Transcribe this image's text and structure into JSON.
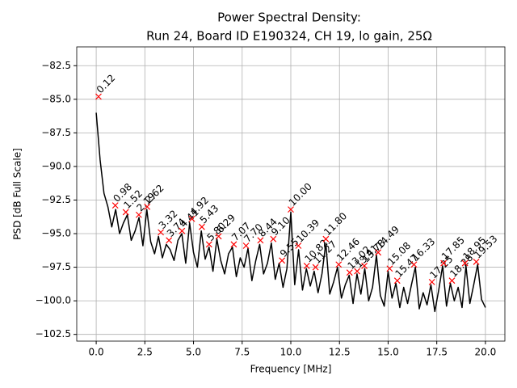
{
  "chart_data": {
    "type": "line",
    "title": "Power Spectral Density:",
    "subtitle": "Run 24, Board ID E190324, CH 19, lo gain, 25Ω",
    "x_label": "Frequency [MHz]",
    "y_label": "PSD [dB Full Scale]",
    "xlim": [
      -1.0,
      21.0
    ],
    "ylim": [
      -103.0,
      -81.1
    ],
    "xticks": [
      {
        "value": 0,
        "label": "0.0"
      },
      2.5,
      {
        "value": 5,
        "label": "5.0"
      },
      7.5,
      {
        "value": 10,
        "label": "10.0"
      },
      12.5,
      {
        "value": 15,
        "label": "15.0"
      },
      17.5,
      {
        "value": 20,
        "label": "20.0"
      }
    ],
    "yticks": [
      {
        "value": -82.5,
        "label": "−82.5"
      },
      {
        "value": -85,
        "label": "−85.0"
      },
      {
        "value": -87.5,
        "label": "−87.5"
      },
      {
        "value": -90,
        "label": "−90.0"
      },
      {
        "value": -92.5,
        "label": "−92.5"
      },
      {
        "value": -95,
        "label": "−95.0"
      },
      {
        "value": -97.5,
        "label": "−97.5"
      },
      {
        "value": -100,
        "label": "−100.0"
      },
      {
        "value": -102.5,
        "label": "−102.5"
      }
    ],
    "grid": true,
    "series": [
      {
        "color": "#000000",
        "marker": "none",
        "x": [
          0.0,
          0.2,
          0.4,
          0.6,
          0.8,
          1.0,
          1.2,
          1.4,
          1.6,
          1.8,
          2.0,
          2.2,
          2.4,
          2.6,
          2.8,
          3.0,
          3.2,
          3.4,
          3.6,
          3.8,
          4.0,
          4.2,
          4.4,
          4.6,
          4.8,
          5.0,
          5.2,
          5.4,
          5.6,
          5.8,
          6.0,
          6.2,
          6.4,
          6.6,
          6.8,
          7.0,
          7.2,
          7.4,
          7.6,
          7.8,
          8.0,
          8.2,
          8.4,
          8.6,
          8.8,
          9.0,
          9.2,
          9.4,
          9.6,
          9.8,
          10.0,
          10.2,
          10.4,
          10.6,
          10.8,
          11.0,
          11.2,
          11.4,
          11.6,
          11.8,
          12.0,
          12.2,
          12.4,
          12.6,
          12.8,
          13.0,
          13.2,
          13.4,
          13.6,
          13.8,
          14.0,
          14.2,
          14.4,
          14.6,
          14.8,
          15.0,
          15.2,
          15.4,
          15.6,
          15.8,
          16.0,
          16.2,
          16.4,
          16.6,
          16.8,
          17.0,
          17.2,
          17.4,
          17.6,
          17.8,
          18.0,
          18.2,
          18.4,
          18.6,
          18.8,
          19.0,
          19.2,
          19.4,
          19.6,
          19.8,
          20.0
        ],
        "values": [
          -86.0,
          -89.5,
          -92.0,
          -93.0,
          -94.5,
          -93.2,
          -95.0,
          -94.2,
          -93.6,
          -95.5,
          -94.8,
          -93.8,
          -95.9,
          -93.2,
          -95.6,
          -96.5,
          -95.2,
          -96.8,
          -95.8,
          -96.2,
          -97.0,
          -95.5,
          -95.0,
          -97.2,
          -94.2,
          -96.4,
          -97.5,
          -94.8,
          -96.9,
          -96.0,
          -97.8,
          -95.4,
          -97.0,
          -98.0,
          -96.5,
          -96.0,
          -98.2,
          -96.8,
          -97.5,
          -96.1,
          -98.5,
          -97.0,
          -95.8,
          -98.0,
          -97.2,
          -95.7,
          -98.4,
          -97.2,
          -99.0,
          -97.6,
          -93.4,
          -98.8,
          -96.2,
          -99.2,
          -97.6,
          -98.9,
          -97.8,
          -99.4,
          -98.0,
          -95.7,
          -99.5,
          -98.6,
          -97.5,
          -99.8,
          -98.8,
          -98.1,
          -100.2,
          -98.0,
          -99.5,
          -97.6,
          -100.0,
          -99.0,
          -96.6,
          -99.6,
          -100.4,
          -97.8,
          -99.8,
          -98.7,
          -100.5,
          -99.0,
          -100.2,
          -98.8,
          -97.5,
          -100.6,
          -99.4,
          -100.3,
          -98.8,
          -100.8,
          -99.2,
          -97.4,
          -100.4,
          -98.7,
          -100.0,
          -99.0,
          -100.5,
          -97.4,
          -100.2,
          -98.8,
          -97.3,
          -99.9,
          -100.5
        ]
      },
      {
        "color": "#ff0000",
        "marker": "x",
        "x": [
          0.12,
          0.98,
          1.52,
          2.19,
          2.62,
          3.32,
          3.74,
          4.41,
          4.92,
          5.43,
          5.8,
          6.29,
          7.07,
          7.7,
          8.44,
          9.1,
          9.55,
          10.0,
          10.39,
          10.82,
          11.27,
          11.8,
          12.46,
          13.02,
          13.41,
          13.78,
          14.49,
          15.08,
          15.47,
          16.33,
          17.25,
          17.85,
          18.28,
          18.95,
          19.53
        ],
        "point_labels": [
          "0.12",
          "0.98",
          "1.52",
          "2.19",
          "2.62",
          "3.32",
          "3.74",
          "4.41",
          "4.92",
          "5.43",
          "5.80",
          "6.29",
          "7.07",
          "7.70",
          "8.44",
          "9.10",
          "9.55",
          "10.00",
          "10.39",
          "10.82",
          "11.27",
          "11.80",
          "12.46",
          "13.02",
          "13.41",
          "13.78",
          "14.49",
          "15.08",
          "15.47",
          "16.33",
          "17.25",
          "17.85",
          "18.28",
          "18.95",
          "19.53"
        ],
        "values": [
          -84.8,
          -92.9,
          -93.4,
          -93.6,
          -93.0,
          -94.9,
          -95.5,
          -94.8,
          -93.9,
          -94.5,
          -95.8,
          -95.2,
          -95.8,
          -95.9,
          -95.5,
          -95.4,
          -97.0,
          -93.2,
          -95.9,
          -97.4,
          -97.5,
          -95.4,
          -97.3,
          -97.9,
          -97.8,
          -97.4,
          -96.4,
          -97.6,
          -98.5,
          -97.3,
          -98.6,
          -97.2,
          -98.5,
          -97.2,
          -97.1
        ]
      }
    ]
  }
}
